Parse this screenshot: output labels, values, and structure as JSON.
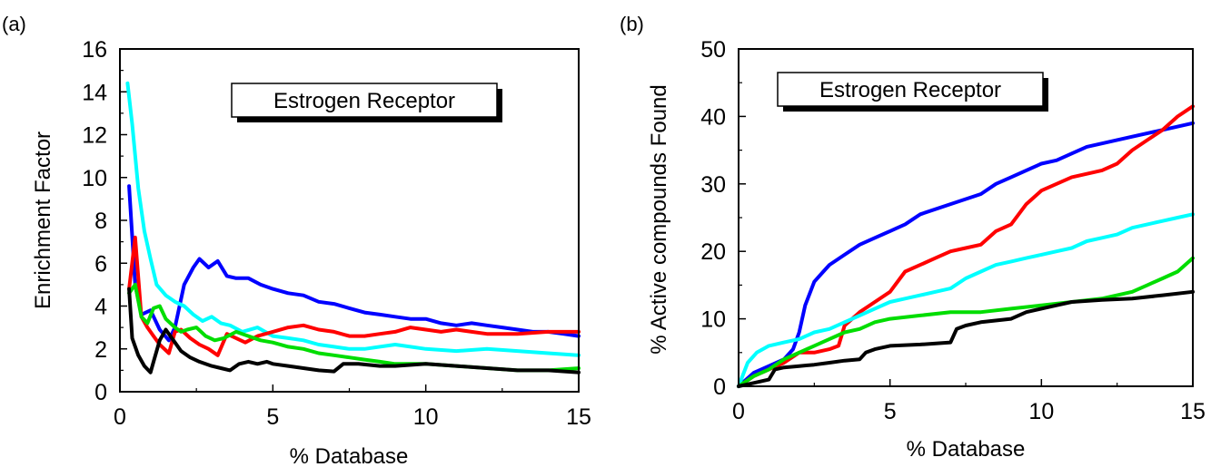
{
  "chart_data": [
    {
      "type": "line",
      "panel_label": "(a)",
      "title": "",
      "xlabel": "% Database",
      "ylabel": "Enrichment Factor",
      "annotation": "Estrogen Receptor",
      "xlim": [
        0,
        15
      ],
      "ylim": [
        0,
        16
      ],
      "xticks": [
        0,
        5,
        10,
        15
      ],
      "yticks": [
        0,
        2,
        4,
        6,
        8,
        10,
        12,
        14,
        16
      ],
      "grid": false,
      "legend": "none",
      "series": [
        {
          "color": "#0000ff",
          "x": [
            0.3,
            0.5,
            0.7,
            1.0,
            1.3,
            1.6,
            1.8,
            2.1,
            2.4,
            2.6,
            2.9,
            3.2,
            3.5,
            3.8,
            4.2,
            4.6,
            5.0,
            5.5,
            6.0,
            6.5,
            7.0,
            7.5,
            8.0,
            8.5,
            9.0,
            9.5,
            10.0,
            10.5,
            11.0,
            11.5,
            12.0,
            12.5,
            13.0,
            13.5,
            14.0,
            14.5,
            15.0
          ],
          "y": [
            9.6,
            5.0,
            3.6,
            3.8,
            2.9,
            2.4,
            3.0,
            5.0,
            5.8,
            6.2,
            5.8,
            6.1,
            5.4,
            5.3,
            5.3,
            5.0,
            4.8,
            4.6,
            4.5,
            4.2,
            4.1,
            3.9,
            3.7,
            3.6,
            3.5,
            3.4,
            3.4,
            3.2,
            3.1,
            3.2,
            3.1,
            3.0,
            2.9,
            2.8,
            2.8,
            2.7,
            2.6
          ]
        },
        {
          "color": "#00ffff",
          "x": [
            0.25,
            0.4,
            0.6,
            0.8,
            1.0,
            1.2,
            1.5,
            1.8,
            2.1,
            2.4,
            2.7,
            3.0,
            3.3,
            3.6,
            4.0,
            4.5,
            5.0,
            5.5,
            6.0,
            6.5,
            7.0,
            7.5,
            8.0,
            9.0,
            10.0,
            11.0,
            12.0,
            13.0,
            14.0,
            15.0
          ],
          "y": [
            14.4,
            12.5,
            9.5,
            7.5,
            6.2,
            5.0,
            4.5,
            4.2,
            4.0,
            3.6,
            3.3,
            3.5,
            3.2,
            3.1,
            2.8,
            3.0,
            2.6,
            2.5,
            2.4,
            2.2,
            2.1,
            2.0,
            2.0,
            2.2,
            2.0,
            1.9,
            2.0,
            1.9,
            1.8,
            1.7
          ]
        },
        {
          "color": "#ff0000",
          "x": [
            0.3,
            0.5,
            0.7,
            0.9,
            1.1,
            1.3,
            1.6,
            1.8,
            2.0,
            2.3,
            2.6,
            2.9,
            3.2,
            3.5,
            3.8,
            4.1,
            4.5,
            5.0,
            5.5,
            6.0,
            6.5,
            7.0,
            7.5,
            8.0,
            8.5,
            9.0,
            9.5,
            10.0,
            10.5,
            11.0,
            11.5,
            12.0,
            13.0,
            14.0,
            15.0
          ],
          "y": [
            4.8,
            7.2,
            3.5,
            3.0,
            2.6,
            2.2,
            1.8,
            2.8,
            2.9,
            2.5,
            2.2,
            2.0,
            1.7,
            2.7,
            2.5,
            2.3,
            2.6,
            2.8,
            3.0,
            3.1,
            2.9,
            2.8,
            2.6,
            2.6,
            2.7,
            2.8,
            3.0,
            2.9,
            2.8,
            2.9,
            2.8,
            2.7,
            2.7,
            2.8,
            2.8
          ]
        },
        {
          "color": "#00dd00",
          "x": [
            0.3,
            0.5,
            0.7,
            0.9,
            1.1,
            1.3,
            1.5,
            1.8,
            2.0,
            2.2,
            2.5,
            2.8,
            3.1,
            3.4,
            3.8,
            4.2,
            4.6,
            5.0,
            5.5,
            6.0,
            6.5,
            7.0,
            7.5,
            8.0,
            8.5,
            9.0,
            10.0,
            11.0,
            12.0,
            13.0,
            14.0,
            15.0
          ],
          "y": [
            4.6,
            5.0,
            3.5,
            3.2,
            3.9,
            4.0,
            3.4,
            3.0,
            2.8,
            2.9,
            3.0,
            2.6,
            2.4,
            2.5,
            2.8,
            2.6,
            2.4,
            2.3,
            2.1,
            2.0,
            1.8,
            1.7,
            1.6,
            1.5,
            1.4,
            1.3,
            1.3,
            1.2,
            1.1,
            1.0,
            1.0,
            1.1
          ]
        },
        {
          "color": "#000000",
          "x": [
            0.3,
            0.4,
            0.6,
            0.8,
            1.0,
            1.1,
            1.3,
            1.5,
            1.8,
            2.0,
            2.3,
            2.6,
            3.0,
            3.3,
            3.6,
            3.9,
            4.2,
            4.5,
            4.8,
            5.0,
            5.5,
            6.0,
            6.5,
            7.0,
            7.3,
            7.8,
            8.5,
            9.0,
            10.0,
            11.0,
            12.0,
            13.0,
            14.0,
            15.0
          ],
          "y": [
            4.8,
            2.5,
            1.7,
            1.2,
            0.9,
            1.4,
            2.4,
            2.9,
            2.3,
            1.9,
            1.6,
            1.4,
            1.2,
            1.1,
            1.0,
            1.3,
            1.4,
            1.3,
            1.4,
            1.3,
            1.2,
            1.1,
            1.0,
            0.95,
            1.3,
            1.3,
            1.2,
            1.2,
            1.3,
            1.2,
            1.1,
            1.0,
            1.0,
            0.9
          ]
        }
      ]
    },
    {
      "type": "line",
      "panel_label": "(b)",
      "title": "",
      "xlabel": "% Database",
      "ylabel": "% Active compounds Found",
      "annotation": "Estrogen Receptor",
      "xlim": [
        0,
        15
      ],
      "ylim": [
        0,
        50
      ],
      "xticks": [
        0,
        5,
        10,
        15
      ],
      "yticks": [
        0,
        10,
        20,
        30,
        40,
        50
      ],
      "grid": false,
      "legend": "none",
      "series": [
        {
          "color": "#0000ff",
          "x": [
            0,
            0.5,
            1.0,
            1.5,
            1.8,
            2.0,
            2.2,
            2.5,
            2.8,
            3.0,
            3.5,
            4.0,
            4.5,
            5.0,
            5.5,
            6.0,
            7.0,
            8.0,
            8.5,
            9.0,
            9.5,
            10.0,
            10.5,
            11.0,
            11.5,
            12.0,
            13.0,
            14.0,
            15.0
          ],
          "y": [
            0,
            2.0,
            3.0,
            4.0,
            5.5,
            8.0,
            12.0,
            15.5,
            17.0,
            18.0,
            19.5,
            21.0,
            22.0,
            23.0,
            24.0,
            25.5,
            27.0,
            28.5,
            30.0,
            31.0,
            32.0,
            33.0,
            33.5,
            34.5,
            35.5,
            36.0,
            37.0,
            38.0,
            39.0
          ]
        },
        {
          "color": "#ff0000",
          "x": [
            0,
            0.5,
            1.0,
            1.5,
            2.0,
            2.5,
            3.0,
            3.3,
            3.5,
            4.0,
            4.5,
            5.0,
            5.5,
            6.0,
            6.5,
            7.0,
            7.5,
            8.0,
            8.5,
            9.0,
            9.5,
            10.0,
            10.5,
            11.0,
            12.0,
            12.5,
            13.0,
            13.5,
            14.0,
            14.5,
            15.0
          ],
          "y": [
            0,
            1.5,
            2.5,
            3.5,
            5.0,
            5.0,
            5.5,
            6.0,
            9.0,
            11.0,
            12.5,
            14.0,
            17.0,
            18.0,
            19.0,
            20.0,
            20.5,
            21.0,
            23.0,
            24.0,
            27.0,
            29.0,
            30.0,
            31.0,
            32.0,
            33.0,
            35.0,
            36.5,
            38.0,
            40.0,
            41.5
          ]
        },
        {
          "color": "#00ffff",
          "x": [
            0,
            0.3,
            0.6,
            1.0,
            1.5,
            2.0,
            2.5,
            3.0,
            3.5,
            4.0,
            4.5,
            5.0,
            5.5,
            6.0,
            6.5,
            7.0,
            7.5,
            8.0,
            8.5,
            9.0,
            9.5,
            10.0,
            10.5,
            11.0,
            11.5,
            12.0,
            12.5,
            13.0,
            13.5,
            14.0,
            14.5,
            15.0
          ],
          "y": [
            0,
            3.5,
            5.0,
            6.0,
            6.5,
            7.0,
            8.0,
            8.5,
            9.5,
            10.5,
            11.5,
            12.5,
            13.0,
            13.5,
            14.0,
            14.5,
            16.0,
            17.0,
            18.0,
            18.5,
            19.0,
            19.5,
            20.0,
            20.5,
            21.5,
            22.0,
            22.5,
            23.5,
            24.0,
            24.5,
            25.0,
            25.5
          ]
        },
        {
          "color": "#00dd00",
          "x": [
            0,
            0.5,
            1.0,
            1.5,
            2.0,
            2.5,
            3.0,
            3.5,
            4.0,
            4.5,
            5.0,
            6.0,
            7.0,
            8.0,
            9.0,
            10.0,
            11.0,
            12.0,
            13.0,
            13.5,
            14.0,
            14.5,
            15.0
          ],
          "y": [
            0,
            1.5,
            2.5,
            4.0,
            5.0,
            6.0,
            7.0,
            8.0,
            8.5,
            9.5,
            10.0,
            10.5,
            11.0,
            11.0,
            11.5,
            12.0,
            12.5,
            13.0,
            14.0,
            15.0,
            16.0,
            17.0,
            19.0
          ]
        },
        {
          "color": "#000000",
          "x": [
            0,
            0.5,
            1.0,
            1.2,
            1.5,
            2.0,
            2.5,
            3.0,
            3.5,
            4.0,
            4.2,
            4.5,
            5.0,
            6.0,
            7.0,
            7.2,
            7.5,
            8.0,
            9.0,
            9.5,
            10.0,
            10.5,
            11.0,
            12.0,
            13.0,
            14.0,
            15.0
          ],
          "y": [
            0,
            0.5,
            1.0,
            2.5,
            2.8,
            3.0,
            3.2,
            3.5,
            3.8,
            4.0,
            5.0,
            5.5,
            6.0,
            6.2,
            6.5,
            8.5,
            9.0,
            9.5,
            10.0,
            11.0,
            11.5,
            12.0,
            12.5,
            12.8,
            13.0,
            13.5,
            14.0
          ]
        }
      ]
    }
  ]
}
